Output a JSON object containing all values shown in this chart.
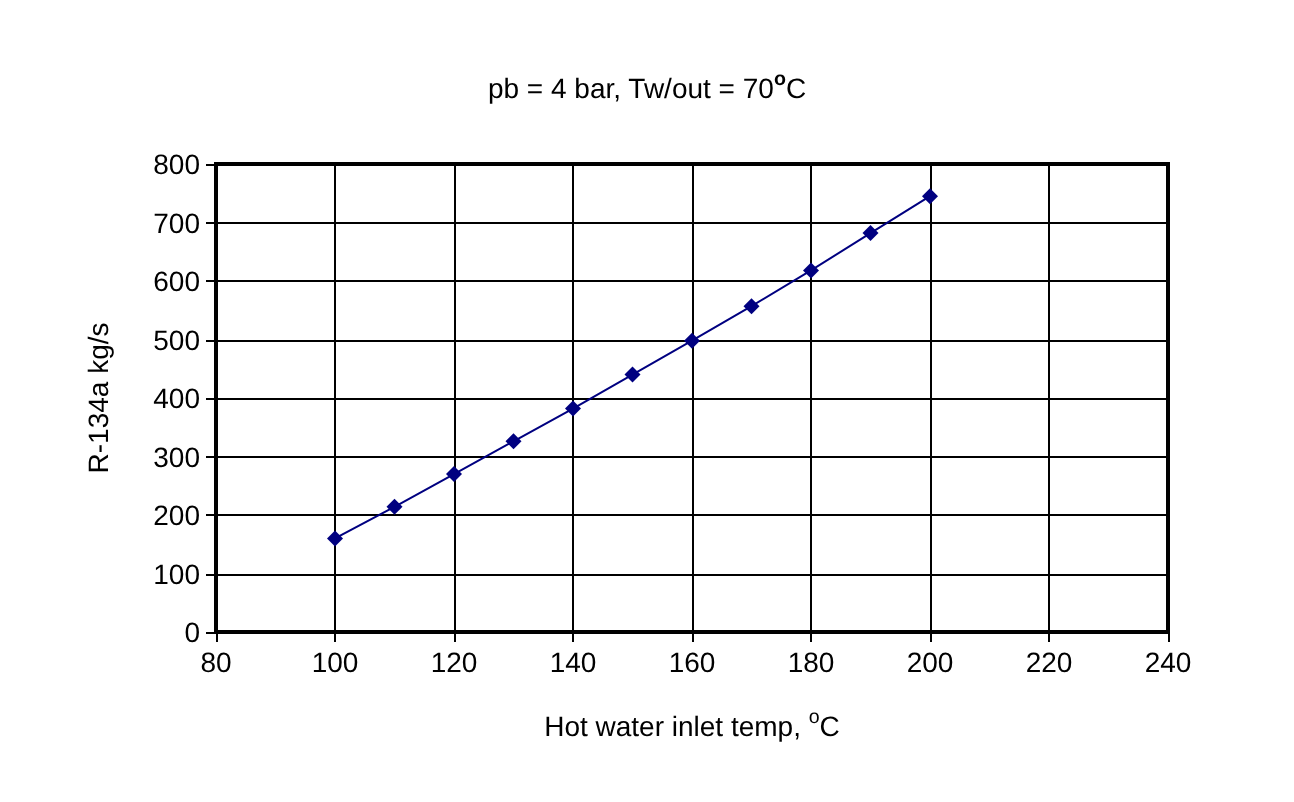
{
  "chart_data": {
    "type": "line",
    "title": "pb = 4 bar, Tw/out = 70$^{o}$C",
    "xlabel": "Hot water inlet temp, $^{o}$C",
    "ylabel": "R-134a kg/s",
    "x": [
      100,
      110,
      120,
      130,
      140,
      150,
      160,
      170,
      180,
      190,
      200
    ],
    "series": [
      {
        "color": "#000080",
        "values": [
          160,
          214,
          270,
          326,
          382,
          440,
          498,
          557,
          618,
          682,
          745
        ]
      }
    ],
    "xlim": [
      80,
      240
    ],
    "xticks": [
      80,
      100,
      120,
      140,
      160,
      180,
      200,
      220,
      240
    ],
    "ylim": [
      0,
      800
    ],
    "yticks": [
      0,
      100,
      200,
      300,
      400,
      500,
      600,
      700,
      800
    ],
    "grid": true,
    "marker": "diamond",
    "line_style": "solid"
  }
}
